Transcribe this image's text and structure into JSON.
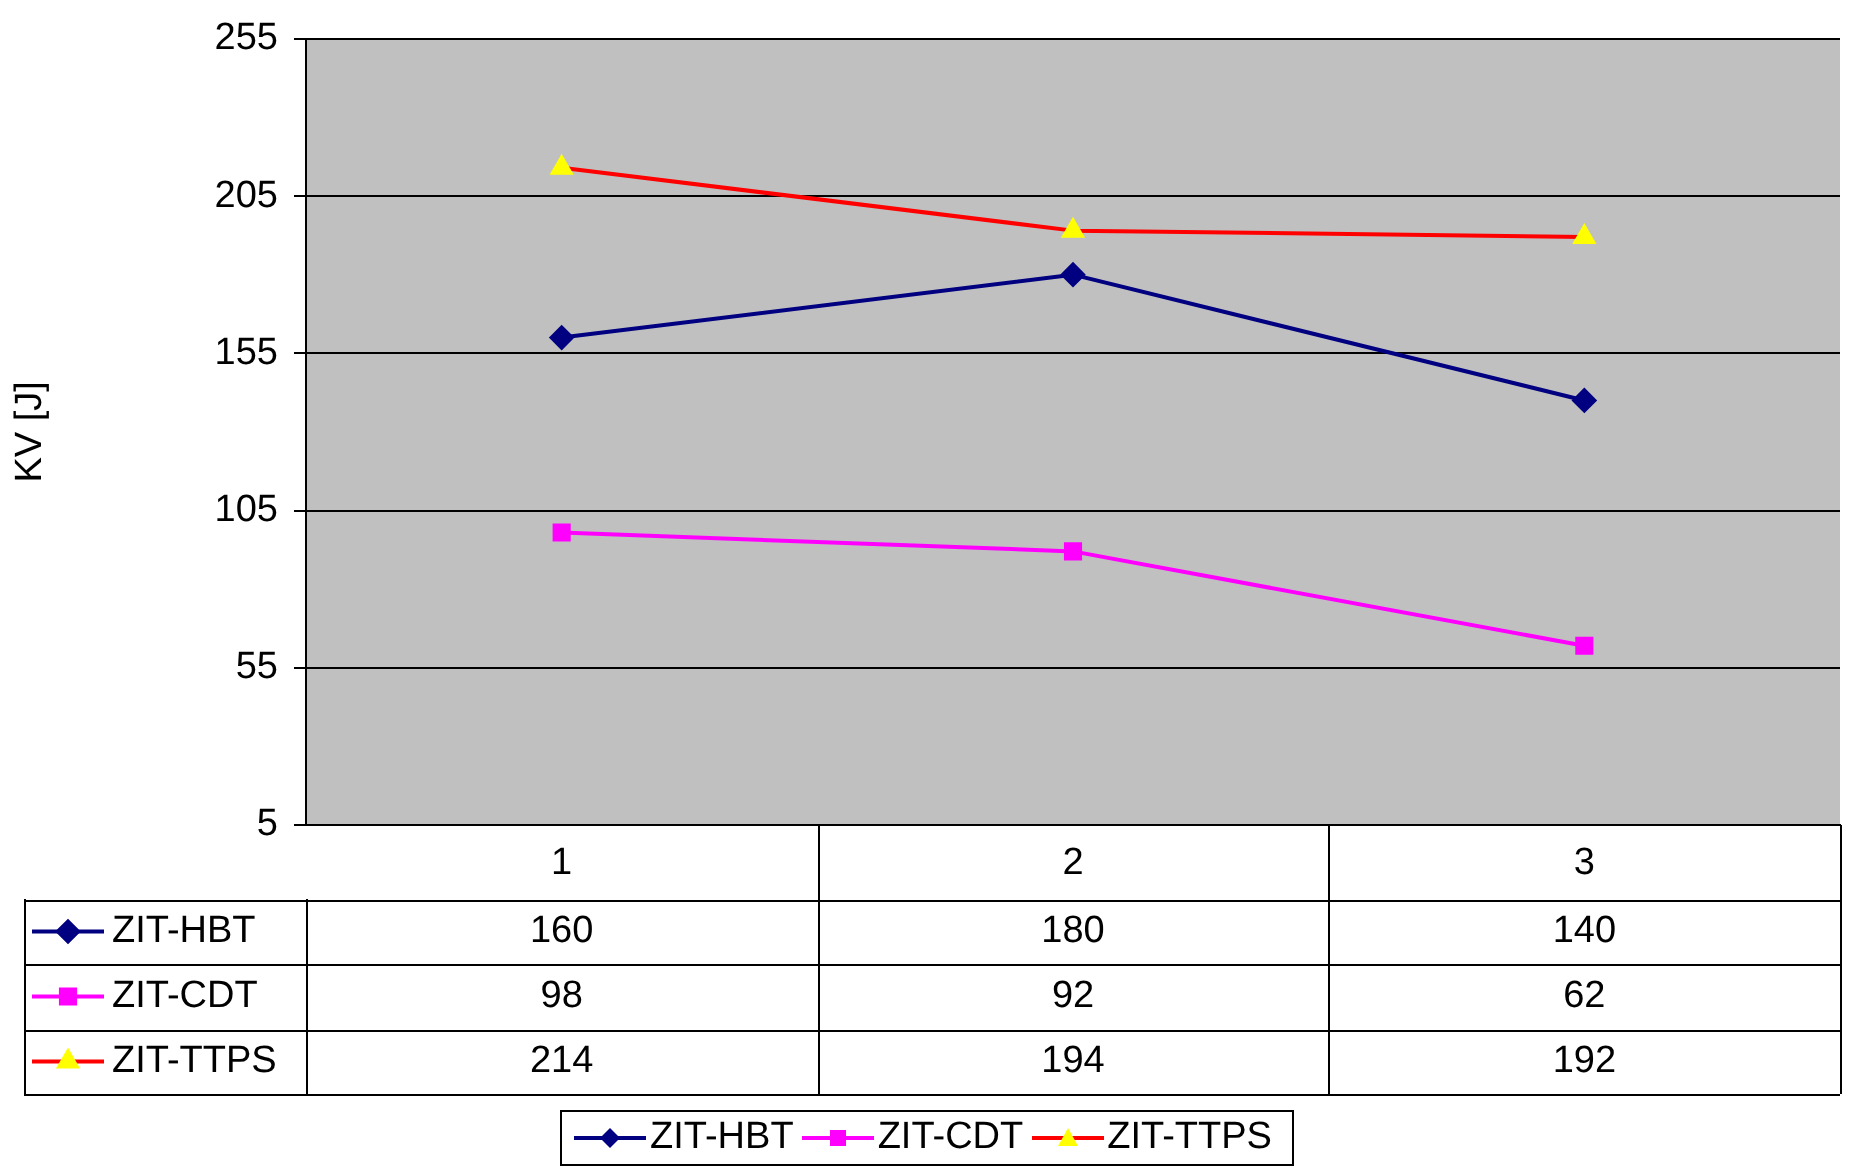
{
  "chart_data": {
    "type": "line",
    "ylabel": "KV [J]",
    "categories": [
      "1",
      "2",
      "3"
    ],
    "series": [
      {
        "name": "ZIT-HBT",
        "color": "#000080",
        "marker": "diamond",
        "values": [
          160,
          180,
          140
        ]
      },
      {
        "name": "ZIT-CDT",
        "color": "#ff00ff",
        "marker": "square",
        "values": [
          98,
          92,
          62
        ]
      },
      {
        "name": "ZIT-TTPS",
        "color": "#ff0000",
        "marker": "triangle",
        "colors": [
          "#ffff00",
          "#ffff00",
          "#ffff00"
        ],
        "values": [
          214,
          194,
          192
        ]
      }
    ],
    "ylim": [
      5,
      255
    ],
    "yticks": [
      5,
      55,
      105,
      155,
      205,
      255
    ],
    "grid": "y",
    "legend": "bottom",
    "data_labels": true,
    "line_style": "solid"
  }
}
